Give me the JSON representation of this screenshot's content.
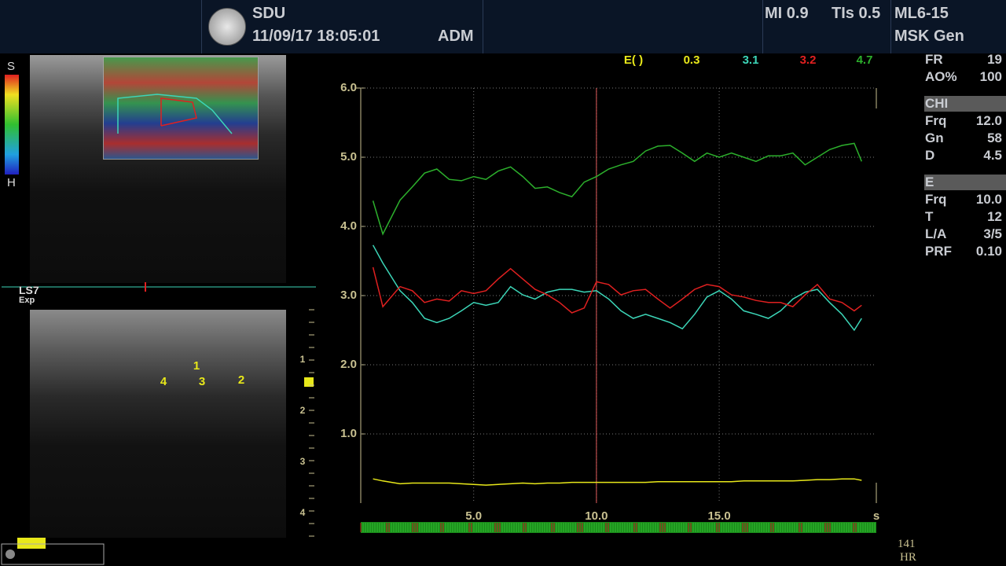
{
  "header": {
    "system": "SDU",
    "datetime": "11/09/17 18:05:01",
    "operator": "ADM",
    "mi": "MI 0.9",
    "tis": "TIs 0.5",
    "probe": "ML6-15",
    "preset": "MSK Gen"
  },
  "left_panel": {
    "scale_top": "S",
    "scale_bottom": "H",
    "trace_label": "LS7",
    "trace_sublabel": "Exp",
    "depth_labels": [
      "1",
      "2",
      "3",
      "4"
    ],
    "roi_labels": [
      "1",
      "2",
      "3",
      "4"
    ]
  },
  "right_panel": {
    "sections": [
      {
        "rows": [
          [
            "FR",
            "19"
          ],
          [
            "AO%",
            "100"
          ]
        ]
      },
      {
        "title": "CHI",
        "rows": [
          [
            "Frq",
            "12.0"
          ],
          [
            "Gn",
            "58"
          ],
          [
            "D",
            "4.5"
          ]
        ]
      },
      {
        "title": "E",
        "rows": [
          [
            "Frq",
            "10.0"
          ],
          [
            "T",
            "12"
          ],
          [
            "L/A",
            "3/5"
          ],
          [
            "PRF",
            "0.10"
          ]
        ]
      }
    ]
  },
  "heart_rate": {
    "value": "141",
    "unit": "HR"
  },
  "chart_data": {
    "type": "line",
    "legend_title": "E( )",
    "x_unit": "s",
    "x": [
      0.9,
      1.3,
      2,
      2.5,
      3,
      3.5,
      4,
      4.5,
      5,
      5.5,
      6,
      6.5,
      7,
      7.5,
      8,
      8.5,
      9,
      9.5,
      10,
      10.5,
      11,
      11.5,
      12,
      12.5,
      13,
      13.5,
      14,
      14.5,
      15,
      15.5,
      16,
      16.5,
      17,
      17.5,
      18,
      18.5,
      19,
      19.5,
      20,
      20.5,
      20.8
    ],
    "series": [
      {
        "name": "0.3",
        "color": "#e8e81a",
        "values": [
          0.35,
          0.32,
          0.28,
          0.29,
          0.29,
          0.29,
          0.29,
          0.28,
          0.27,
          0.26,
          0.27,
          0.28,
          0.29,
          0.28,
          0.29,
          0.29,
          0.3,
          0.3,
          0.3,
          0.3,
          0.3,
          0.3,
          0.3,
          0.31,
          0.31,
          0.31,
          0.31,
          0.31,
          0.31,
          0.31,
          0.32,
          0.32,
          0.32,
          0.32,
          0.32,
          0.33,
          0.34,
          0.34,
          0.35,
          0.35,
          0.33
        ]
      },
      {
        "name": "3.1",
        "color": "#3cd6b8",
        "values": [
          3.73,
          3.47,
          3.07,
          2.9,
          2.67,
          2.61,
          2.67,
          2.78,
          2.9,
          2.86,
          2.9,
          3.13,
          3.01,
          2.95,
          3.05,
          3.09,
          3.09,
          3.05,
          3.07,
          2.95,
          2.78,
          2.67,
          2.73,
          2.67,
          2.61,
          2.52,
          2.73,
          2.98,
          3.07,
          2.95,
          2.78,
          2.73,
          2.67,
          2.78,
          2.95,
          3.05,
          3.09,
          2.9,
          2.73,
          2.5,
          2.67
        ]
      },
      {
        "name": "3.2",
        "color": "#e02020",
        "values": [
          3.41,
          2.84,
          3.13,
          3.07,
          2.9,
          2.95,
          2.92,
          3.07,
          3.03,
          3.07,
          3.24,
          3.39,
          3.24,
          3.09,
          3.01,
          2.9,
          2.75,
          2.82,
          3.2,
          3.16,
          3.01,
          3.07,
          3.09,
          2.95,
          2.82,
          2.95,
          3.09,
          3.16,
          3.13,
          3.01,
          2.98,
          2.93,
          2.9,
          2.9,
          2.84,
          3.01,
          3.16,
          2.95,
          2.9,
          2.78,
          2.86
        ]
      },
      {
        "name": "4.7",
        "color": "#2cb02c",
        "values": [
          4.37,
          3.89,
          4.38,
          4.57,
          4.77,
          4.83,
          4.68,
          4.66,
          4.72,
          4.68,
          4.8,
          4.86,
          4.72,
          4.55,
          4.57,
          4.49,
          4.43,
          4.64,
          4.72,
          4.83,
          4.89,
          4.94,
          5.09,
          5.16,
          5.17,
          5.06,
          4.94,
          5.06,
          5.0,
          5.06,
          5.0,
          4.94,
          5.02,
          5.02,
          5.06,
          4.89,
          5.0,
          5.11,
          5.17,
          5.2,
          4.94
        ]
      }
    ],
    "xlim": [
      0.4,
      21.4
    ],
    "ylim": [
      0,
      6
    ],
    "xticks": [
      {
        "value": 5,
        "label": "5.0"
      },
      {
        "value": 10,
        "label": "10.0"
      },
      {
        "value": 15,
        "label": "15.0"
      }
    ],
    "yticks": [
      {
        "value": 1,
        "label": "1.0"
      },
      {
        "value": 2,
        "label": "2.0"
      },
      {
        "value": 3,
        "label": "3.0"
      },
      {
        "value": 4,
        "label": "4.0"
      },
      {
        "value": 5,
        "label": "5.0"
      },
      {
        "value": 6,
        "label": "6.0"
      }
    ],
    "grid": true,
    "cursor_x": 10,
    "cursor_color": "#e05a5a"
  }
}
